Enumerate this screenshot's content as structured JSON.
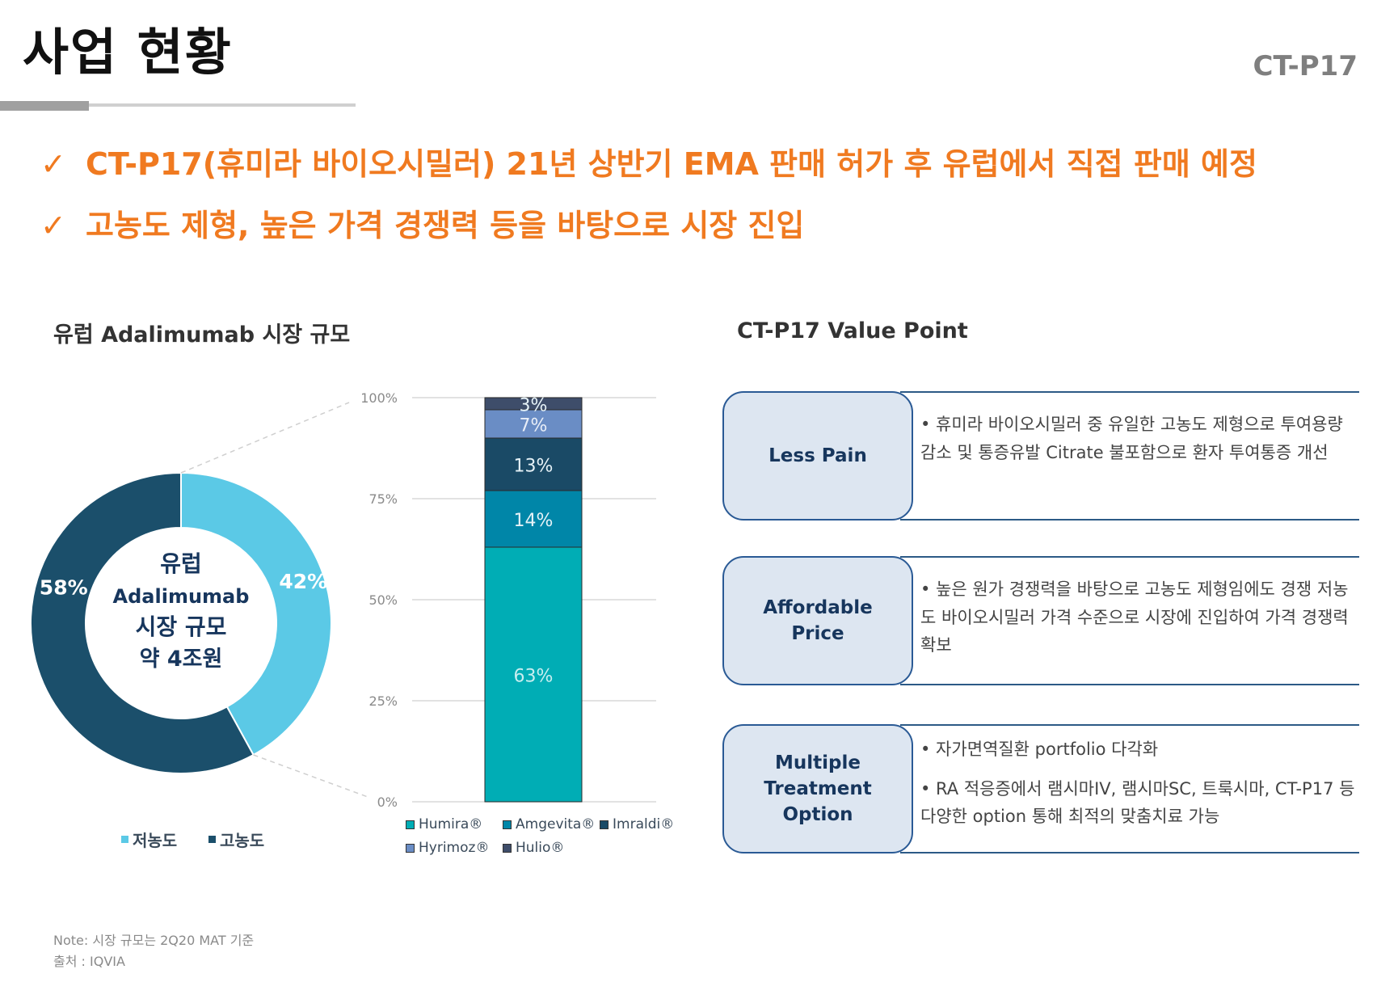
{
  "header": {
    "title": "사업 현황",
    "product_code": "CT-P17"
  },
  "bullets": [
    {
      "check": "✓",
      "text": "CT-P17(휴미라 바이오시밀러) 21년 상반기 EMA 판매 허가 후 유럽에서 직접 판매 예정"
    },
    {
      "check": "✓",
      "text": "고농도 제형, 높은 가격 경쟁력 등을 바탕으로 시장 진입"
    }
  ],
  "left_section": {
    "title": "유럽 Adalimumab 시장 규모"
  },
  "right_section": {
    "title": "CT-P17 Value Point"
  },
  "colors": {
    "accent_orange": "#f07a20",
    "low_conc": "#5bc9e6",
    "high_conc": "#1b4f6b",
    "humira": "#00adb5",
    "amgevita": "#0086a8",
    "imraldi": "#1a4a66",
    "hyrimoz": "#6a8dc5",
    "hulio": "#3e4d6a",
    "box_fill": "#dde6f1",
    "box_border": "#2a5a95"
  },
  "chart_data": [
    {
      "type": "pie",
      "variant": "donut",
      "center_label": [
        "유럽",
        "Adalimumab",
        "시장 규모",
        "약 4조원"
      ],
      "slices": [
        {
          "name": "저농도",
          "value": 42,
          "label": "42%",
          "color": "#5bc9e6"
        },
        {
          "name": "고농도",
          "value": 58,
          "label": "58%",
          "color": "#1b4f6b"
        }
      ],
      "legend": [
        "저농도",
        "고농도"
      ],
      "legend_position": "bottom"
    },
    {
      "type": "bar",
      "variant": "stacked-100",
      "ylim": [
        0,
        100
      ],
      "yticks": [
        "0%",
        "25%",
        "50%",
        "75%",
        "100%"
      ],
      "series": [
        {
          "name": "Humira®",
          "value": 63,
          "label": "63%",
          "color": "#00adb5"
        },
        {
          "name": "Amgevita®",
          "value": 14,
          "label": "14%",
          "color": "#0086a8"
        },
        {
          "name": "Imraldi®",
          "value": 13,
          "label": "13%",
          "color": "#1a4a66"
        },
        {
          "name": "Hyrimoz®",
          "value": 7,
          "label": "7%",
          "color": "#6a8dc5"
        },
        {
          "name": "Hulio®",
          "value": 3,
          "label": "3%",
          "color": "#3e4d6a"
        }
      ],
      "legend_position": "bottom",
      "grid": true
    }
  ],
  "value_points": [
    {
      "title": "Less Pain",
      "lines": [
        "• 휴미라 바이오시밀러 중 유일한 고농도 제형으로 투여용량 감소 및 통증유발 Citrate 불포함으로 환자 투여통증 개선"
      ]
    },
    {
      "title": "Affordable\nPrice",
      "lines": [
        "• 높은 원가 경쟁력을 바탕으로 고농도 제형임에도 경쟁 저농도 바이오시밀러 가격 수준으로 시장에 진입하여 가격 경쟁력 확보"
      ]
    },
    {
      "title": "Multiple\nTreatment\nOption",
      "lines": [
        "• 자가면역질환 portfolio 다각화",
        "• RA 적응증에서 램시마IV, 램시마SC, 트룩시마, CT-P17 등 다양한 option 통해 최적의 맞춤치료 가능"
      ]
    }
  ],
  "footnotes": {
    "note": "Note: 시장 규모는 2Q20 MAT 기준",
    "source": "출처 : IQVIA"
  }
}
